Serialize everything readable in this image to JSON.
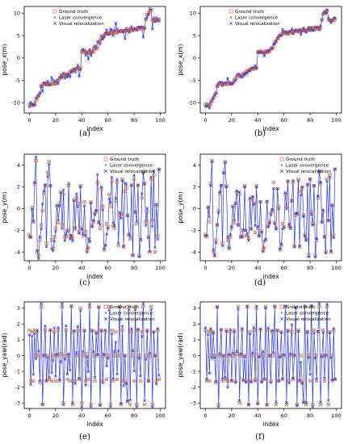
{
  "legend_entries": [
    "Ground truth",
    "Laser convergence",
    "Visual relocalization"
  ],
  "colors": {
    "ground_truth": "#e8514d",
    "laser": "#2ca02c",
    "visual": "#1f2fd6",
    "line": "#2b3be0"
  },
  "chart_data": [
    {
      "type": "scatter",
      "caption": "(a)",
      "xlabel": "index",
      "ylabel": "pose_x(m)",
      "xlim": [
        -4,
        104
      ],
      "ylim": [
        -12.3,
        11.5
      ],
      "xticks": [
        0,
        20,
        40,
        60,
        80,
        100
      ],
      "yticks": [
        -10,
        -5,
        0,
        5,
        10
      ],
      "legend": "top-left",
      "visual_noise": 1.4,
      "gt": [
        -10.4,
        -10.3,
        -10.6,
        -10.5,
        -10.2,
        -9.5,
        -9.0,
        -8.4,
        -7.9,
        -6.3,
        -5.9,
        -5.8,
        -5.7,
        -5.9,
        -5.8,
        -5.8,
        -5.9,
        -5.8,
        -5.8,
        -5.7,
        -5.8,
        -5.6,
        -4.9,
        -4.6,
        -4.3,
        -3.9,
        -3.8,
        -4.0,
        -4.2,
        -3.7,
        -3.4,
        -3.1,
        -2.9,
        -2.8,
        -2.6,
        -2.5,
        -2.5,
        -2.4,
        -2.3,
        -2.2,
        1.3,
        1.4,
        1.5,
        1.3,
        1.2,
        1.3,
        1.5,
        1.2,
        1.4,
        1.5,
        2.0,
        2.2,
        2.4,
        3.5,
        3.8,
        4.3,
        4.5,
        5.0,
        5.3,
        5.5,
        5.4,
        5.6,
        5.7,
        5.5,
        5.6,
        5.8,
        5.7,
        5.6,
        5.9,
        6.0,
        6.0,
        5.9,
        6.1,
        6.0,
        6.2,
        6.3,
        6.1,
        6.0,
        6.2,
        6.5,
        6.4,
        6.5,
        6.4,
        6.6,
        6.5,
        6.6,
        6.8,
        6.5,
        6.7,
        8.6,
        9.7,
        10.1,
        10.3,
        10.6,
        8.5,
        8.4,
        8.3,
        8.4,
        8.5,
        8.6
      ]
    },
    {
      "type": "scatter",
      "caption": "(b)",
      "xlabel": "index",
      "ylabel": "pose_x(m)",
      "xlim": [
        -4,
        104
      ],
      "ylim": [
        -12.3,
        11.5
      ],
      "xticks": [
        0,
        20,
        40,
        60,
        80,
        100
      ],
      "yticks": [
        -10,
        -5,
        0,
        5,
        10
      ],
      "legend": "top-left",
      "visual_noise": 0.8,
      "gt": [
        -10.4,
        -10.3,
        -10.6,
        -10.5,
        -10.2,
        -9.5,
        -9.0,
        -8.4,
        -7.9,
        -6.3,
        -5.9,
        -5.8,
        -5.7,
        -5.9,
        -5.8,
        -5.8,
        -5.9,
        -5.8,
        -5.8,
        -5.7,
        -5.8,
        -5.6,
        -4.9,
        -4.6,
        -4.3,
        -3.9,
        -3.8,
        -4.0,
        -4.2,
        -3.7,
        -3.4,
        -3.1,
        -2.9,
        -2.8,
        -2.6,
        -2.5,
        -2.5,
        -2.4,
        -2.3,
        -2.2,
        1.3,
        1.4,
        1.5,
        1.3,
        1.2,
        1.3,
        1.5,
        1.2,
        1.4,
        1.5,
        2.0,
        2.2,
        2.4,
        3.5,
        3.8,
        4.3,
        4.5,
        5.0,
        5.3,
        5.5,
        5.4,
        5.6,
        5.7,
        5.5,
        5.6,
        5.8,
        5.7,
        5.6,
        5.9,
        6.0,
        6.0,
        5.9,
        6.1,
        6.0,
        6.2,
        6.3,
        6.1,
        6.0,
        6.2,
        6.5,
        6.4,
        6.5,
        6.4,
        6.6,
        6.5,
        6.6,
        6.8,
        6.5,
        6.7,
        8.6,
        9.7,
        10.1,
        10.3,
        10.6,
        8.5,
        8.4,
        8.3,
        8.4,
        8.5,
        8.6
      ]
    },
    {
      "type": "scatter",
      "caption": "(c)",
      "xlabel": "index",
      "ylabel": "pose_y(m)",
      "xlim": [
        -4,
        104
      ],
      "ylim": [
        -4.8,
        5.0
      ],
      "xticks": [
        0,
        20,
        40,
        60,
        80,
        100
      ],
      "yticks": [
        -4,
        -2,
        0,
        2,
        4
      ],
      "legend": "top-right",
      "visual_noise": 0.7,
      "gt": [
        -2.4,
        -2.6,
        0.1,
        -1.2,
        2.3,
        4.4,
        -4.0,
        -4.3,
        -2.9,
        -1.5,
        -0.2,
        1.4,
        2.1,
        -3.2,
        3.3,
        4.3,
        2.1,
        -2.9,
        -3.6,
        -2.6,
        -1.8,
        0.2,
        -1.3,
        0.5,
        1.5,
        -1.5,
        1.3,
        -2.6,
        -2.6,
        -2.0,
        2.1,
        -2.5,
        -2.5,
        -2.7,
        0.8,
        -1.9,
        1.0,
        0.5,
        -2.2,
        2.1,
        -1.8,
        -2.5,
        0.6,
        -2.1,
        -3.8,
        -3.6,
        -2.9,
        0.6,
        -1.6,
        -1.2,
        -0.4,
        -0.2,
        2.4,
        -1.3,
        -1.8,
        1.8,
        0.2,
        -3.8,
        -3.4,
        -1.4,
        -1.7,
        1.3,
        0.2,
        2.5,
        -1.6,
        -1.8,
        0.7,
        2.4,
        -3.4,
        -0.6,
        -0.5,
        2.7,
        -3.5,
        1.6,
        1.9,
        -0.6,
        -2.4,
        -2.8,
        2.2,
        -4.3,
        2.7,
        -0.3,
        -1.4,
        2.1,
        -4.3,
        -2.9,
        1.0,
        3.4,
        2.3,
        -1.2,
        -0.3,
        -2.6,
        -4.0,
        2.7,
        -1.1,
        3.1,
        -4.0,
        0.3,
        -2.5,
        3.6
      ]
    },
    {
      "type": "scatter",
      "caption": "(d)",
      "xlabel": "index",
      "ylabel": "pose_y(m)",
      "xlim": [
        -4,
        104
      ],
      "ylim": [
        -4.8,
        5.0
      ],
      "xticks": [
        0,
        20,
        40,
        60,
        80,
        100
      ],
      "yticks": [
        -4,
        -2,
        0,
        2,
        4
      ],
      "legend": "top-right",
      "visual_noise": 0.4,
      "gt": [
        -2.4,
        -2.6,
        0.1,
        -1.2,
        2.3,
        4.4,
        -4.0,
        -4.3,
        -2.9,
        -1.5,
        -0.2,
        1.4,
        2.1,
        -3.2,
        3.3,
        4.3,
        2.1,
        -2.9,
        -3.6,
        -2.6,
        -1.8,
        0.2,
        -1.3,
        0.5,
        1.5,
        -1.5,
        1.3,
        -2.6,
        -2.6,
        -2.0,
        2.1,
        -2.5,
        -2.5,
        -2.7,
        0.8,
        -1.9,
        1.0,
        0.5,
        -2.2,
        2.1,
        -1.8,
        -2.5,
        0.6,
        -2.1,
        -3.8,
        -3.6,
        -2.9,
        0.6,
        -1.6,
        -1.2,
        -0.4,
        -0.2,
        2.4,
        -1.3,
        -1.8,
        1.8,
        0.2,
        -3.8,
        -3.4,
        -1.4,
        -1.7,
        1.3,
        0.2,
        2.5,
        -1.6,
        -1.8,
        0.7,
        2.4,
        -3.4,
        -0.6,
        -0.5,
        2.7,
        -3.5,
        1.6,
        1.9,
        -0.6,
        -2.4,
        -2.8,
        2.2,
        -4.3,
        2.7,
        -0.3,
        -1.4,
        2.1,
        -4.3,
        -2.9,
        1.0,
        3.4,
        2.3,
        -1.2,
        -0.3,
        -2.6,
        -4.0,
        2.7,
        -1.1,
        3.1,
        -4.0,
        0.3,
        -2.5,
        3.6
      ]
    },
    {
      "type": "scatter",
      "caption": "(e)",
      "xlabel": "index",
      "ylabel": "pose_yaw(rad)",
      "xlim": [
        -4,
        104
      ],
      "ylim": [
        -3.35,
        3.4
      ],
      "xticks": [
        0,
        20,
        40,
        60,
        80,
        100
      ],
      "yticks": [
        -3,
        -2,
        -1,
        0,
        1,
        2,
        3
      ],
      "legend": "top-right",
      "visual_noise": 0.55,
      "gt": [
        1.6,
        -1.6,
        1.5,
        -1.6,
        1.6,
        0.0,
        1.5,
        0.0,
        -1.7,
        3.1,
        -3.1,
        0.0,
        1.6,
        -1.6,
        0.0,
        -1.5,
        1.6,
        -1.6,
        0.0,
        1.5,
        -1.6,
        0.0,
        1.6,
        -1.6,
        0.1,
        3.1,
        -3.0,
        0.0,
        1.6,
        -1.5,
        0.0,
        -1.6,
        3.1,
        -3.1,
        1.5,
        -1.6,
        0.0,
        1.6,
        -1.5,
        3.0,
        -3.0,
        0.0,
        1.6,
        -1.6,
        0.1,
        -1.5,
        3.1,
        -3.1,
        1.6,
        0.0,
        -1.6,
        1.5,
        0.0,
        3.1,
        -3.1,
        1.6,
        -1.6,
        0.0,
        1.5,
        -1.5,
        0.0,
        3.1,
        -3.1,
        1.6,
        -1.6,
        0.0,
        1.5,
        -1.5,
        0.0,
        3.1,
        -3.1,
        1.6,
        -1.6,
        0.0,
        -1.7,
        -2.9,
        3.1,
        -3.1,
        1.5,
        0.0,
        -1.6,
        3.1,
        -3.1,
        1.6,
        0.0,
        -1.6,
        1.5,
        3.1,
        -3.1,
        0.0,
        1.6,
        -1.6,
        0.0,
        3.1,
        -3.1,
        1.5,
        0.0,
        -1.6,
        1.6,
        -1.5
      ]
    },
    {
      "type": "scatter",
      "caption": "(f)",
      "xlabel": "index",
      "ylabel": "pose_yaw(rad)",
      "xlim": [
        -4,
        104
      ],
      "ylim": [
        -3.35,
        3.4
      ],
      "xticks": [
        0,
        20,
        40,
        60,
        80,
        100
      ],
      "yticks": [
        -3,
        -2,
        -1,
        0,
        1,
        2,
        3
      ],
      "legend": "top-right",
      "visual_noise": 0.3,
      "gt": [
        1.6,
        -1.6,
        1.5,
        -1.6,
        1.6,
        0.0,
        1.5,
        0.0,
        -1.7,
        3.1,
        -3.1,
        0.0,
        1.6,
        -1.6,
        0.0,
        -1.5,
        1.6,
        -1.6,
        0.0,
        1.5,
        -1.6,
        0.0,
        1.6,
        -1.6,
        0.1,
        3.1,
        -3.0,
        0.0,
        1.6,
        -1.5,
        0.0,
        -1.6,
        3.1,
        -3.1,
        1.5,
        -1.6,
        0.0,
        1.6,
        -1.5,
        3.0,
        -3.0,
        0.0,
        1.6,
        -1.6,
        0.1,
        -1.5,
        3.1,
        -3.1,
        1.6,
        0.0,
        -1.6,
        1.5,
        0.0,
        3.1,
        -3.1,
        1.6,
        -1.6,
        0.0,
        1.5,
        -1.5,
        0.0,
        3.1,
        -3.1,
        1.6,
        -1.6,
        0.0,
        1.5,
        -1.5,
        0.0,
        3.1,
        -3.1,
        1.6,
        -1.6,
        0.0,
        -1.7,
        -2.9,
        3.1,
        -3.1,
        1.5,
        0.0,
        -1.6,
        3.1,
        -3.1,
        1.6,
        0.0,
        -1.6,
        1.5,
        3.1,
        -3.1,
        0.0,
        1.6,
        -1.6,
        0.0,
        3.1,
        -3.1,
        1.5,
        0.0,
        -1.6,
        1.6,
        -1.5
      ]
    }
  ]
}
